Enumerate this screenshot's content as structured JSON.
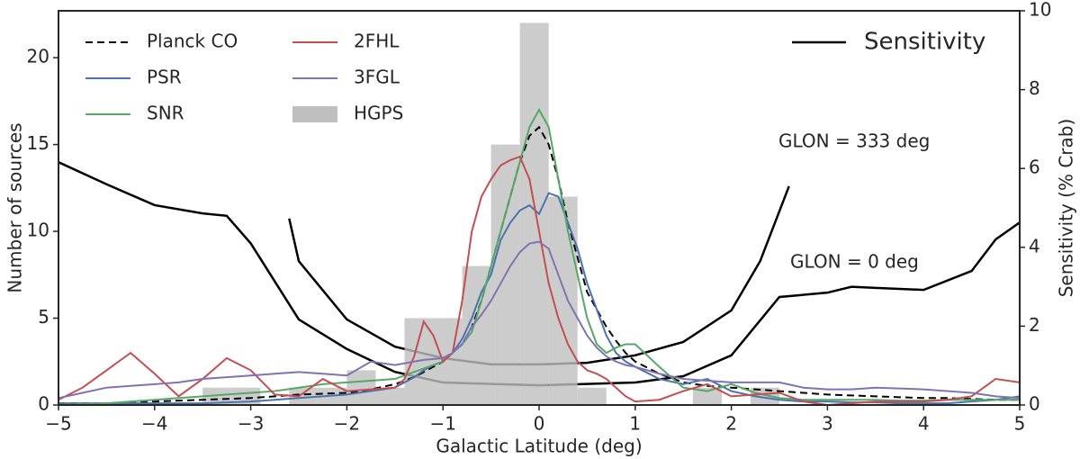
{
  "chart_data": {
    "type": "line",
    "xlabel": "Galactic Latitude (deg)",
    "ylabel": "Number of sources",
    "y2label": "Sensitivity (% Crab)",
    "xlim": [
      -5,
      5
    ],
    "xticks": [
      {
        "value": -5,
        "label": "−5"
      },
      {
        "value": -4,
        "label": "−4"
      },
      {
        "value": -3,
        "label": "−3"
      },
      {
        "value": -2,
        "label": "−2"
      },
      {
        "value": -1,
        "label": "−1"
      },
      0,
      1,
      2,
      3,
      4,
      5
    ],
    "ylim": [
      0,
      22.7
    ],
    "yticks": [
      0,
      5,
      10,
      15,
      20
    ],
    "y2lim": [
      0,
      10
    ],
    "y2ticks": [
      0,
      2,
      4,
      6,
      8,
      10
    ],
    "x": [
      -5,
      -4.75,
      -4.5,
      -4.25,
      -4,
      -3.75,
      -3.5,
      -3.25,
      -3,
      -2.75,
      -2.5,
      -2.25,
      -2,
      -1.75,
      -1.5,
      -1.4,
      -1.3,
      -1.2,
      -1.1,
      -1.0,
      -0.9,
      -0.8,
      -0.7,
      -0.6,
      -0.5,
      -0.4,
      -0.3,
      -0.2,
      -0.1,
      0,
      0.1,
      0.2,
      0.3,
      0.4,
      0.5,
      0.6,
      0.7,
      0.8,
      0.9,
      1.0,
      1.25,
      1.5,
      1.75,
      2,
      2.25,
      2.5,
      2.75,
      3,
      3.25,
      3.5,
      3.75,
      4,
      4.25,
      4.5,
      4.75,
      5
    ],
    "series": [
      {
        "name": "Planck CO",
        "color": "#000000",
        "dashed": true,
        "values": [
          0.1,
          0.1,
          0.1,
          0.15,
          0.2,
          0.25,
          0.3,
          0.35,
          0.4,
          0.5,
          0.6,
          0.65,
          0.7,
          0.9,
          1.2,
          1.4,
          1.6,
          1.9,
          2.2,
          2.5,
          3.0,
          3.5,
          4.5,
          6,
          8,
          10,
          12,
          14,
          15.5,
          16,
          15,
          13,
          10.5,
          8.5,
          6.5,
          5.5,
          4.5,
          3.7,
          3,
          2.5,
          1.8,
          1.3,
          1.1,
          1.0,
          0.9,
          0.8,
          0.7,
          0.6,
          0.55,
          0.5,
          0.45,
          0.4,
          0.4,
          0.35,
          0.3,
          0.3
        ]
      },
      {
        "name": "PSR",
        "color": "#4c72b0",
        "values": [
          0.1,
          0.1,
          0.1,
          0.1,
          0.1,
          0.1,
          0.1,
          0.15,
          0.2,
          0.3,
          0.4,
          0.5,
          0.6,
          0.8,
          1.0,
          1.3,
          1.6,
          2.0,
          2.3,
          2.5,
          3.0,
          3.8,
          5.0,
          6.5,
          7.5,
          9.5,
          10.5,
          11.2,
          11.5,
          11,
          12.2,
          12,
          10.5,
          9,
          7,
          5.5,
          4,
          3,
          2.5,
          2.2,
          1.5,
          1.2,
          1.5,
          0.8,
          0.5,
          0.3,
          0.2,
          0.2,
          0.15,
          0.15,
          0.1,
          0.1,
          0.1,
          0.2,
          0.3,
          0.5
        ]
      },
      {
        "name": "SNR",
        "color": "#55a868",
        "values": [
          0,
          0.05,
          0.1,
          0.2,
          0.3,
          0.4,
          0.5,
          0.6,
          0.7,
          0.8,
          1.0,
          1.2,
          1.3,
          1.4,
          1.5,
          1.7,
          1.9,
          2.1,
          2.3,
          2.5,
          3.0,
          3.5,
          4.2,
          6,
          8,
          10,
          12,
          14,
          16,
          17,
          16,
          13,
          10,
          7.5,
          5,
          3.5,
          3,
          3.3,
          3.5,
          3.5,
          2.2,
          1.0,
          0.8,
          1.2,
          0.7,
          0.4,
          0.3,
          0.3,
          0.3,
          0.3,
          0.25,
          0.25,
          0.3,
          0.3,
          0.3,
          0.3
        ]
      },
      {
        "name": "2FHL",
        "color": "#c44e52",
        "values": [
          0.3,
          1.0,
          2.0,
          3.0,
          1.8,
          0.5,
          1.5,
          2.7,
          2.0,
          0.6,
          0.5,
          1.5,
          0.8,
          0.9,
          1.0,
          1.5,
          2.8,
          4.8,
          4.0,
          2.5,
          3.0,
          6.0,
          10.0,
          12,
          13,
          13.8,
          14.1,
          14.3,
          13,
          10,
          7,
          5,
          3.5,
          2.5,
          2,
          1.8,
          1.5,
          1.0,
          0.5,
          0.2,
          0.3,
          0.8,
          1.2,
          0.5,
          0.6,
          0.7,
          0.2,
          0,
          0.1,
          0.2,
          0.2,
          0.2,
          0.3,
          0.5,
          1.5,
          1.3
        ]
      },
      {
        "name": "3FGL",
        "color": "#8172b2",
        "values": [
          0.4,
          0.7,
          1.0,
          1.1,
          1.2,
          1.3,
          1.5,
          1.6,
          1.7,
          1.8,
          1.9,
          1.8,
          1.7,
          2.5,
          2.3,
          2.4,
          2.5,
          2.6,
          2.65,
          2.7,
          3.0,
          3.5,
          4.5,
          5.2,
          6,
          7,
          8,
          8.8,
          9.3,
          9.4,
          9,
          7.5,
          6,
          5,
          4,
          3.3,
          2.8,
          2.5,
          2.3,
          2.2,
          1.8,
          1.5,
          1.4,
          1.3,
          1.3,
          1.3,
          1.0,
          0.9,
          0.9,
          1.0,
          0.95,
          0.9,
          0.8,
          0.7,
          0.5,
          0.4
        ]
      }
    ],
    "histogram": {
      "name": "HGPS",
      "color": "#bfbfbf",
      "bins": [
        -5,
        -4.7,
        -4.4,
        -4.1,
        -3.8,
        -3.5,
        -3.2,
        -2.9,
        -2.6,
        -2.3,
        -2.0,
        -1.7,
        -1.4,
        -1.1,
        -0.8,
        -0.5,
        -0.2,
        0.1,
        0.4,
        0.7,
        1.0,
        1.3,
        1.6,
        1.9,
        2.2,
        2.5,
        2.8,
        3.1,
        3.4,
        3.7,
        4.0,
        4.3,
        4.6,
        4.9
      ],
      "counts": [
        0,
        0,
        0,
        0,
        0,
        1,
        1,
        0,
        1,
        1,
        2,
        1,
        5,
        5,
        8,
        15,
        22,
        12,
        1,
        0,
        0,
        0,
        1,
        0,
        1,
        0,
        0,
        0,
        0,
        0,
        0,
        0,
        0
      ]
    },
    "sensitivity": {
      "name": "Sensitivity",
      "color": "#000000",
      "axis": "y2",
      "curves": [
        {
          "x": [
            -5,
            -4.5,
            -4,
            -3.5,
            -3.25,
            -3,
            -2.5,
            -2,
            -1.5,
            -1,
            0,
            1,
            1.5,
            2,
            2.5,
            3,
            3.25,
            3.5,
            4,
            4.5,
            4.75,
            5
          ],
          "values": [
            6.16,
            5.6,
            5.07,
            4.86,
            4.8,
            4.1,
            2.17,
            1.42,
            0.84,
            0.57,
            0.5,
            0.57,
            0.73,
            1.26,
            2.74,
            2.85,
            3.0,
            2.97,
            2.92,
            3.4,
            4.2,
            4.63
          ]
        },
        {
          "x": [
            -2.6,
            -2.5,
            -2,
            -1.5,
            -1,
            -0.5,
            0,
            0.5,
            1,
            1.5,
            2,
            2.3,
            2.6
          ],
          "values": [
            4.73,
            3.65,
            2.17,
            1.48,
            1.19,
            1.03,
            1.03,
            1.07,
            1.26,
            1.6,
            2.4,
            3.65,
            5.55
          ]
        }
      ]
    },
    "annotations": [
      "GLON = 333 deg",
      "GLON = 0 deg"
    ]
  }
}
